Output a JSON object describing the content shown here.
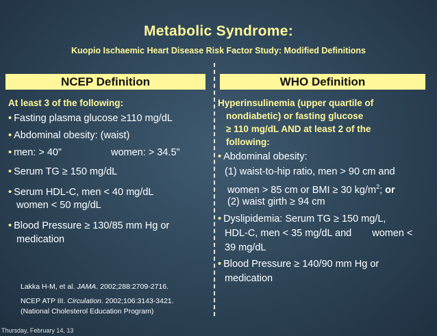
{
  "slide": {
    "title": "Metabolic Syndrome:",
    "subtitle": "Kuopio Ischaemic Heart Disease Risk Factor Study: Modified Definitions",
    "footer": "Thursday, February 14, 13"
  },
  "ncep": {
    "header": "NCEP Definition",
    "lead": "At least 3 of the following:",
    "fasting": "Fasting plasma glucose ≥110 mg/dL",
    "obesity": "Abdominal obesity:  (waist)",
    "men": "men: > 40”",
    "women": "women: > 34.5”",
    "tg": "Serum TG ≥ 150 mg/dL",
    "hdl_1": "Serum HDL-C, men < 40 mg/dL",
    "hdl_2": "women < 50 mg/dL",
    "bp_1": "Blood Pressure ≥ 130/85 mm Hg or",
    "bp_2": "medication"
  },
  "who": {
    "header": "WHO Definition",
    "lead_1": "Hyperinsulinemia (upper quartile of",
    "lead_2": "nondiabetic) or fasting glucose",
    "lead_3": "≥ 110 mg/dL AND at least 2 of the",
    "lead_4": "following:",
    "obesity": "Abdominal obesity:",
    "ratio_1": "(1) waist-to-hip ratio, men > 90 cm and",
    "ratio_2a": "women > 85 cm or BMI ≥ 30 kg/m",
    "ratio_2_sup": "2",
    "ratio_2b": ";",
    "ratio_2_or": "or",
    "girth": "(2) waist girth ≥ 94 cm",
    "dys_1": "Dyslipidemia: Serum TG ≥ 150 mg/L,",
    "dys_2a": "HDL-C, men < 35 mg/dL and",
    "dys_2b": "women <",
    "dys_3": "39 mg/dL",
    "bp_1": "Blood Pressure ≥ 140/90 mm Hg or",
    "bp_2": "medication"
  },
  "refs": {
    "ref1_pre": "Lakka H-M, et al. ",
    "ref1_journal": "JAMA",
    "ref1_post": ". 2002;288:2709-2716.",
    "ref2_pre": "NCEP ATP III. ",
    "ref2_journal": "Circulation",
    "ref2_post": ". 2002;106:3143-3421.",
    "ref3": "(National Cholesterol Education Program)"
  },
  "bullet_char": "•",
  "colors": {
    "accent_yellow": "#fff799",
    "background": "#2d4457"
  }
}
